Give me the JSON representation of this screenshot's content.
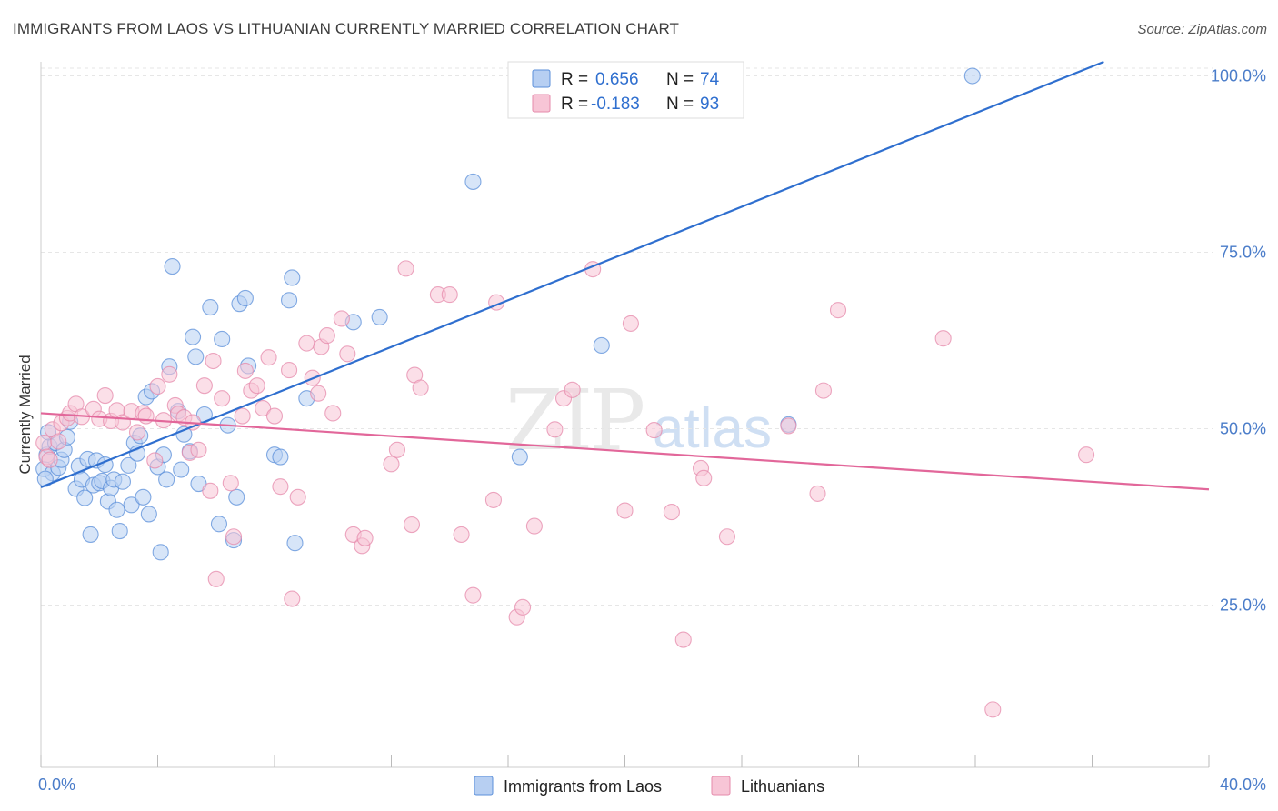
{
  "title": "IMMIGRANTS FROM LAOS VS LITHUANIAN CURRENTLY MARRIED CORRELATION CHART",
  "source": "Source: ZipAtlas.com",
  "watermark": {
    "part1": "ZIP",
    "part2": "atlas"
  },
  "legend_top": [
    {
      "r_label": "R =",
      "r_value": "0.656",
      "n_label": "N =",
      "n_value": "74",
      "color": "#5b8fd9",
      "fill": "#b7cff2"
    },
    {
      "r_label": "R =",
      "r_value": "-0.183",
      "n_label": "N =",
      "n_value": "93",
      "color": "#e58aab",
      "fill": "#f7c5d6"
    }
  ],
  "legend_bottom": [
    {
      "label": "Immigrants from Laos",
      "color": "#5b8fd9",
      "fill": "#b7cff2"
    },
    {
      "label": "Lithuanians",
      "color": "#e58aab",
      "fill": "#f7c5d6"
    }
  ],
  "chart_data": {
    "type": "scatter",
    "title": "IMMIGRANTS FROM LAOS VS LITHUANIAN CURRENTLY MARRIED CORRELATION CHART",
    "xlabel": "",
    "ylabel": "Currently Married",
    "xlim": [
      0,
      40
    ],
    "ylim": [
      2,
      102
    ],
    "x_tick_labels": [
      "0.0%",
      "40.0%"
    ],
    "y_ticks": [
      25,
      50,
      75,
      100
    ],
    "y_tick_labels": [
      "25.0%",
      "50.0%",
      "75.0%",
      "100.0%"
    ],
    "grid": true,
    "series": [
      {
        "name": "Immigrants from Laos",
        "color": "#5b8fd9",
        "fill": "#b7cff2",
        "trend": {
          "x": [
            0,
            36.4
          ],
          "y": [
            41.7,
            102
          ]
        },
        "points": [
          [
            0.1,
            44.3
          ],
          [
            0.2,
            46.3
          ],
          [
            0.3,
            47.5
          ],
          [
            0.4,
            43.7
          ],
          [
            0.5,
            48.0
          ],
          [
            0.6,
            44.5
          ],
          [
            0.7,
            45.6
          ],
          [
            0.8,
            47.0
          ],
          [
            0.9,
            48.8
          ],
          [
            1.0,
            51.0
          ],
          [
            1.2,
            41.5
          ],
          [
            1.3,
            44.7
          ],
          [
            1.4,
            42.8
          ],
          [
            1.5,
            40.2
          ],
          [
            1.6,
            45.7
          ],
          [
            1.7,
            35.0
          ],
          [
            1.8,
            42.0
          ],
          [
            1.9,
            45.5
          ],
          [
            2.0,
            42.3
          ],
          [
            2.1,
            42.6
          ],
          [
            2.2,
            44.9
          ],
          [
            2.3,
            39.7
          ],
          [
            2.4,
            41.6
          ],
          [
            2.5,
            42.8
          ],
          [
            2.6,
            38.5
          ],
          [
            2.7,
            35.5
          ],
          [
            2.8,
            42.5
          ],
          [
            3.0,
            44.8
          ],
          [
            3.1,
            39.2
          ],
          [
            3.2,
            48.0
          ],
          [
            3.3,
            46.5
          ],
          [
            3.4,
            49.0
          ],
          [
            3.5,
            40.3
          ],
          [
            3.6,
            54.5
          ],
          [
            3.7,
            37.9
          ],
          [
            3.8,
            55.3
          ],
          [
            4.0,
            44.6
          ],
          [
            4.1,
            32.5
          ],
          [
            4.2,
            46.3
          ],
          [
            4.3,
            42.8
          ],
          [
            4.4,
            58.8
          ],
          [
            4.5,
            73.0
          ],
          [
            4.7,
            52.5
          ],
          [
            4.8,
            44.2
          ],
          [
            4.9,
            49.2
          ],
          [
            5.1,
            46.8
          ],
          [
            5.2,
            63.0
          ],
          [
            5.3,
            60.2
          ],
          [
            5.4,
            42.2
          ],
          [
            5.6,
            52.0
          ],
          [
            5.8,
            67.2
          ],
          [
            6.1,
            36.5
          ],
          [
            6.2,
            62.7
          ],
          [
            6.4,
            50.5
          ],
          [
            6.6,
            34.2
          ],
          [
            6.7,
            40.3
          ],
          [
            6.8,
            67.7
          ],
          [
            7.0,
            68.5
          ],
          [
            7.1,
            58.9
          ],
          [
            8.0,
            46.3
          ],
          [
            8.2,
            46.0
          ],
          [
            8.5,
            68.2
          ],
          [
            8.6,
            71.4
          ],
          [
            8.7,
            33.8
          ],
          [
            9.1,
            54.3
          ],
          [
            10.7,
            65.1
          ],
          [
            11.6,
            65.8
          ],
          [
            14.8,
            85.0
          ],
          [
            16.4,
            46.0
          ],
          [
            19.2,
            61.8
          ],
          [
            25.6,
            50.6
          ],
          [
            31.9,
            100.0
          ],
          [
            0.15,
            42.9
          ],
          [
            0.25,
            49.5
          ]
        ]
      },
      {
        "name": "Lithuanians",
        "color": "#e58aab",
        "fill": "#f7c5d6",
        "trend": {
          "x": [
            0,
            40
          ],
          "y": [
            52.2,
            41.4
          ]
        },
        "points": [
          [
            0.1,
            48.0
          ],
          [
            0.2,
            46.0
          ],
          [
            0.3,
            45.6
          ],
          [
            0.4,
            49.9
          ],
          [
            0.6,
            48.2
          ],
          [
            0.7,
            50.8
          ],
          [
            0.9,
            51.5
          ],
          [
            1.0,
            52.2
          ],
          [
            1.2,
            53.5
          ],
          [
            1.4,
            51.7
          ],
          [
            1.8,
            52.8
          ],
          [
            2.0,
            51.4
          ],
          [
            2.2,
            54.7
          ],
          [
            2.4,
            51.1
          ],
          [
            2.6,
            52.6
          ],
          [
            2.8,
            50.9
          ],
          [
            3.1,
            52.5
          ],
          [
            3.3,
            49.5
          ],
          [
            3.5,
            52.2
          ],
          [
            3.6,
            51.8
          ],
          [
            3.9,
            45.5
          ],
          [
            4.0,
            56.0
          ],
          [
            4.2,
            51.2
          ],
          [
            4.4,
            57.7
          ],
          [
            4.6,
            53.3
          ],
          [
            4.7,
            52.1
          ],
          [
            4.9,
            51.6
          ],
          [
            5.1,
            46.6
          ],
          [
            5.2,
            50.9
          ],
          [
            5.4,
            47.0
          ],
          [
            5.6,
            56.1
          ],
          [
            5.8,
            41.2
          ],
          [
            5.9,
            59.6
          ],
          [
            6.0,
            28.7
          ],
          [
            6.2,
            54.3
          ],
          [
            6.5,
            42.3
          ],
          [
            6.6,
            34.7
          ],
          [
            6.9,
            51.8
          ],
          [
            7.0,
            58.2
          ],
          [
            7.2,
            55.4
          ],
          [
            7.4,
            56.1
          ],
          [
            7.6,
            52.9
          ],
          [
            7.8,
            60.1
          ],
          [
            8.0,
            51.8
          ],
          [
            8.2,
            41.8
          ],
          [
            8.5,
            58.3
          ],
          [
            8.6,
            25.9
          ],
          [
            8.8,
            40.3
          ],
          [
            9.1,
            62.1
          ],
          [
            9.3,
            57.2
          ],
          [
            9.5,
            55.0
          ],
          [
            9.6,
            61.6
          ],
          [
            9.8,
            63.2
          ],
          [
            10.0,
            52.2
          ],
          [
            10.3,
            65.6
          ],
          [
            10.5,
            60.6
          ],
          [
            10.7,
            35.0
          ],
          [
            11.0,
            33.4
          ],
          [
            11.1,
            34.5
          ],
          [
            12.0,
            45.0
          ],
          [
            12.2,
            47.0
          ],
          [
            12.5,
            72.7
          ],
          [
            12.7,
            36.4
          ],
          [
            12.8,
            57.6
          ],
          [
            13.0,
            55.8
          ],
          [
            13.6,
            69.0
          ],
          [
            14.0,
            69.0
          ],
          [
            14.4,
            35.0
          ],
          [
            14.8,
            26.4
          ],
          [
            15.5,
            39.9
          ],
          [
            15.6,
            67.9
          ],
          [
            16.3,
            23.3
          ],
          [
            16.5,
            24.7
          ],
          [
            16.9,
            36.2
          ],
          [
            17.6,
            49.9
          ],
          [
            17.9,
            54.3
          ],
          [
            18.2,
            55.5
          ],
          [
            18.9,
            72.6
          ],
          [
            20.0,
            38.4
          ],
          [
            20.2,
            64.9
          ],
          [
            21.0,
            49.8
          ],
          [
            21.6,
            38.2
          ],
          [
            22.0,
            20.1
          ],
          [
            22.6,
            44.4
          ],
          [
            22.7,
            43.0
          ],
          [
            23.5,
            34.7
          ],
          [
            25.6,
            50.4
          ],
          [
            26.6,
            40.8
          ],
          [
            26.8,
            55.4
          ],
          [
            27.3,
            66.8
          ],
          [
            30.9,
            62.8
          ],
          [
            32.6,
            10.2
          ],
          [
            35.8,
            46.3
          ]
        ]
      }
    ]
  }
}
